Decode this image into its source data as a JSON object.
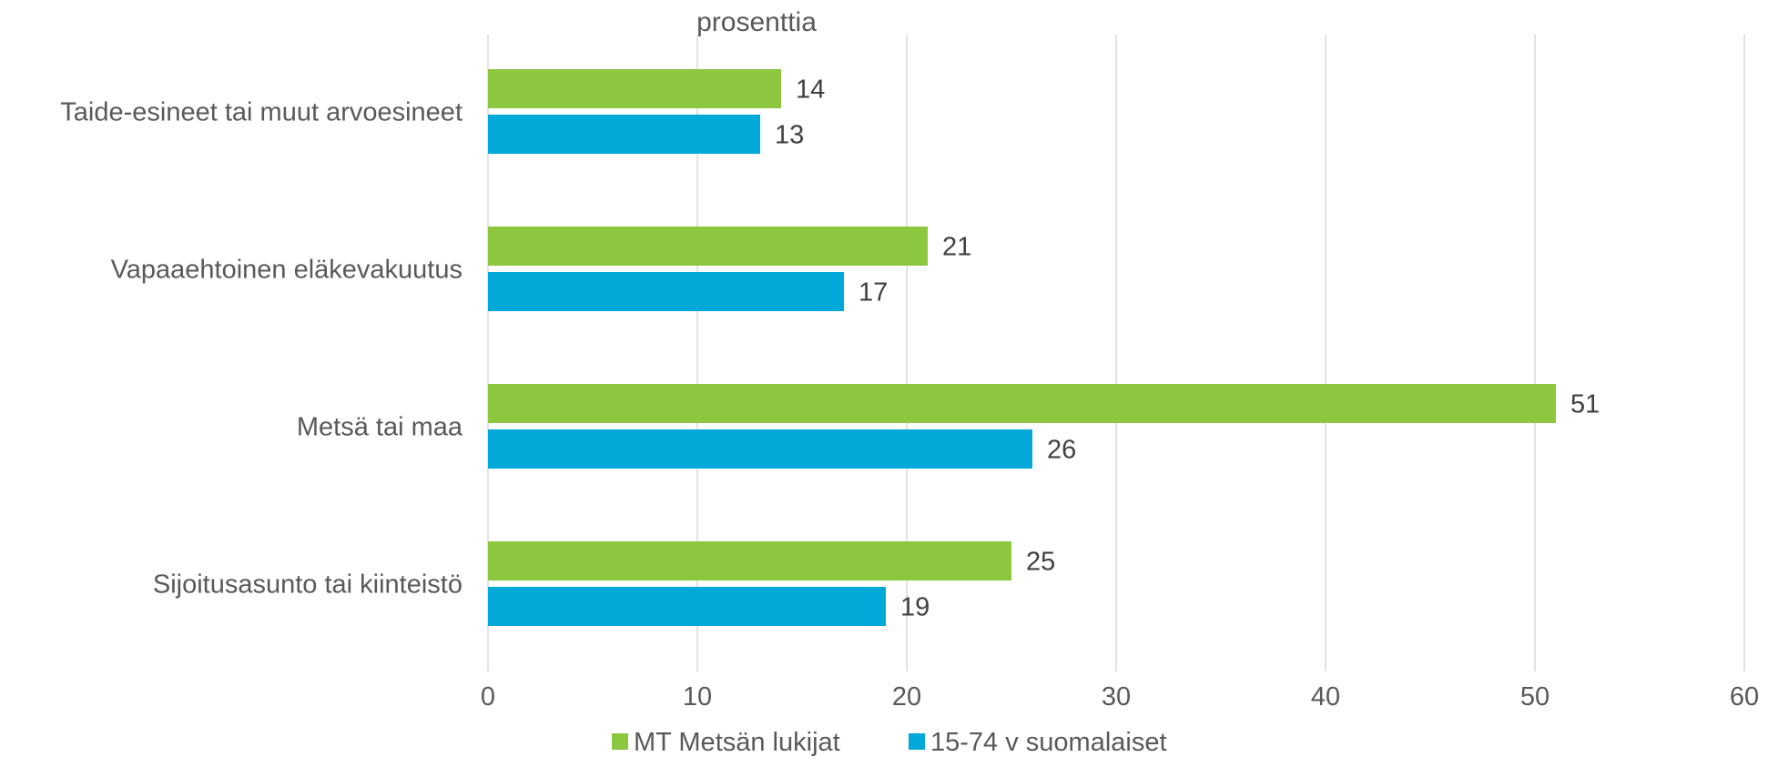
{
  "chart_data": {
    "type": "bar",
    "orientation": "horizontal",
    "unit_label": "prosenttia",
    "categories": [
      "Taide-esineet tai muut arvoesineet",
      "Vapaaehtoinen eläkevakuutus",
      "Metsä tai maa",
      "Sijoitusasunto tai kiinteistö"
    ],
    "series": [
      {
        "name": "MT Metsän lukijat",
        "color": "#8dc63f",
        "values": [
          14,
          21,
          51,
          25
        ]
      },
      {
        "name": "15-74 v suomalaiset",
        "color": "#00a9d8",
        "values": [
          13,
          17,
          26,
          19
        ]
      }
    ],
    "xlim": [
      0,
      60
    ],
    "xticks": [
      "0",
      "10",
      "20",
      "30",
      "40",
      "50",
      "60"
    ],
    "grid": "vertical",
    "legend": "bottom",
    "data_labels": true
  }
}
